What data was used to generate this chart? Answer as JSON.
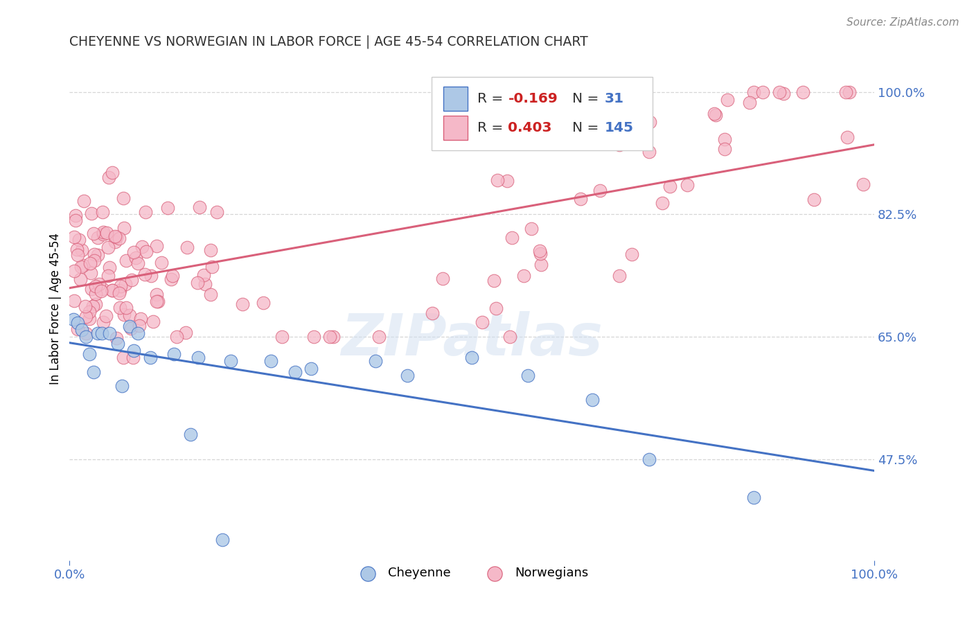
{
  "title": "CHEYENNE VS NORWEGIAN IN LABOR FORCE | AGE 45-54 CORRELATION CHART",
  "source": "Source: ZipAtlas.com",
  "ylabel": "In Labor Force | Age 45-54",
  "xlim": [
    0.0,
    1.0
  ],
  "ylim": [
    0.33,
    1.05
  ],
  "yticks_right": [
    0.475,
    0.65,
    0.825,
    1.0
  ],
  "ytick_labels_right": [
    "47.5%",
    "65.0%",
    "82.5%",
    "100.0%"
  ],
  "legend_r_cheyenne": "-0.169",
  "legend_n_cheyenne": "31",
  "legend_r_norwegian": "0.403",
  "legend_n_norwegian": "145",
  "cheyenne_fill": "#adc8e6",
  "cheyenne_edge": "#4472c4",
  "norwegian_fill": "#f5b8c8",
  "norwegian_edge": "#d9607a",
  "cheyenne_line": "#4472c4",
  "norwegian_line": "#d9607a",
  "watermark": "ZIPatlas",
  "cheyenne_x": [
    0.005,
    0.01,
    0.01,
    0.015,
    0.02,
    0.025,
    0.03,
    0.035,
    0.04,
    0.05,
    0.06,
    0.065,
    0.08,
    0.1,
    0.13,
    0.17,
    0.25,
    0.28,
    0.3,
    0.38,
    0.42,
    0.5,
    0.57,
    0.62,
    0.67,
    0.72,
    0.78,
    0.83,
    0.07,
    0.15,
    0.19
  ],
  "cheyenne_y": [
    0.675,
    0.66,
    0.68,
    0.67,
    0.625,
    0.595,
    0.605,
    0.66,
    0.655,
    0.66,
    0.63,
    0.575,
    0.66,
    0.615,
    0.63,
    0.62,
    0.615,
    0.605,
    0.605,
    0.62,
    0.595,
    0.625,
    0.595,
    0.605,
    0.555,
    0.565,
    0.48,
    0.42,
    0.6,
    0.51,
    0.36
  ],
  "norwegian_x": [
    0.005,
    0.005,
    0.005,
    0.01,
    0.01,
    0.01,
    0.01,
    0.01,
    0.015,
    0.015,
    0.015,
    0.015,
    0.02,
    0.02,
    0.02,
    0.02,
    0.02,
    0.02,
    0.025,
    0.025,
    0.025,
    0.025,
    0.03,
    0.03,
    0.03,
    0.03,
    0.035,
    0.035,
    0.035,
    0.04,
    0.04,
    0.04,
    0.04,
    0.045,
    0.045,
    0.05,
    0.05,
    0.05,
    0.055,
    0.06,
    0.06,
    0.065,
    0.07,
    0.07,
    0.075,
    0.08,
    0.08,
    0.085,
    0.09,
    0.09,
    0.1,
    0.1,
    0.1,
    0.11,
    0.11,
    0.12,
    0.12,
    0.13,
    0.13,
    0.14,
    0.15,
    0.15,
    0.16,
    0.17,
    0.18,
    0.18,
    0.19,
    0.2,
    0.21,
    0.22,
    0.23,
    0.24,
    0.25,
    0.26,
    0.27,
    0.28,
    0.3,
    0.31,
    0.32,
    0.33,
    0.35,
    0.36,
    0.37,
    0.38,
    0.4,
    0.41,
    0.42,
    0.44,
    0.46,
    0.48,
    0.5,
    0.52,
    0.54,
    0.56,
    0.58,
    0.6,
    0.62,
    0.64,
    0.66,
    0.68,
    0.7,
    0.72,
    0.75,
    0.78,
    0.8,
    0.83,
    0.85,
    0.87,
    0.9,
    0.92,
    0.95,
    0.97,
    1.0,
    1.0,
    1.0,
    1.0,
    1.0,
    1.0,
    1.0,
    1.0,
    1.0,
    1.0,
    1.0,
    1.0,
    1.0,
    1.0,
    1.0,
    1.0,
    1.0,
    1.0,
    1.0,
    1.0,
    1.0,
    1.0,
    1.0,
    1.0,
    1.0,
    1.0,
    1.0,
    1.0,
    1.0,
    1.0,
    1.0
  ],
  "norwegian_y": [
    0.67,
    0.69,
    0.71,
    0.67,
    0.69,
    0.71,
    0.73,
    0.675,
    0.68,
    0.7,
    0.72,
    0.74,
    0.67,
    0.685,
    0.7,
    0.72,
    0.74,
    0.76,
    0.68,
    0.7,
    0.72,
    0.74,
    0.68,
    0.7,
    0.72,
    0.74,
    0.685,
    0.705,
    0.725,
    0.69,
    0.71,
    0.73,
    0.75,
    0.7,
    0.72,
    0.7,
    0.72,
    0.74,
    0.72,
    0.71,
    0.73,
    0.72,
    0.72,
    0.74,
    0.73,
    0.73,
    0.75,
    0.74,
    0.74,
    0.76,
    0.74,
    0.76,
    0.78,
    0.75,
    0.77,
    0.75,
    0.77,
    0.76,
    0.78,
    0.77,
    0.78,
    0.8,
    0.79,
    0.8,
    0.81,
    0.79,
    0.8,
    0.81,
    0.82,
    0.81,
    0.82,
    0.83,
    0.82,
    0.83,
    0.82,
    0.83,
    0.84,
    0.83,
    0.84,
    0.85,
    0.86,
    0.85,
    0.86,
    0.87,
    0.86,
    0.87,
    0.88,
    0.87,
    0.88,
    0.89,
    0.9,
    0.91,
    0.92,
    0.93,
    0.94,
    0.95,
    0.96,
    0.97,
    0.97,
    0.98,
    0.99,
    1.0,
    0.98,
    0.99,
    1.0,
    0.99,
    1.0,
    0.99,
    1.0,
    0.99,
    1.0,
    0.99,
    1.0,
    0.99,
    1.0,
    0.99,
    1.0,
    0.99,
    1.0,
    0.99,
    1.0,
    0.99,
    1.0,
    0.99,
    1.0,
    0.99,
    1.0,
    0.99,
    1.0,
    0.99,
    1.0,
    0.99,
    1.0,
    0.99,
    1.0,
    0.99,
    1.0,
    0.99,
    1.0,
    0.99,
    1.0,
    0.99
  ]
}
